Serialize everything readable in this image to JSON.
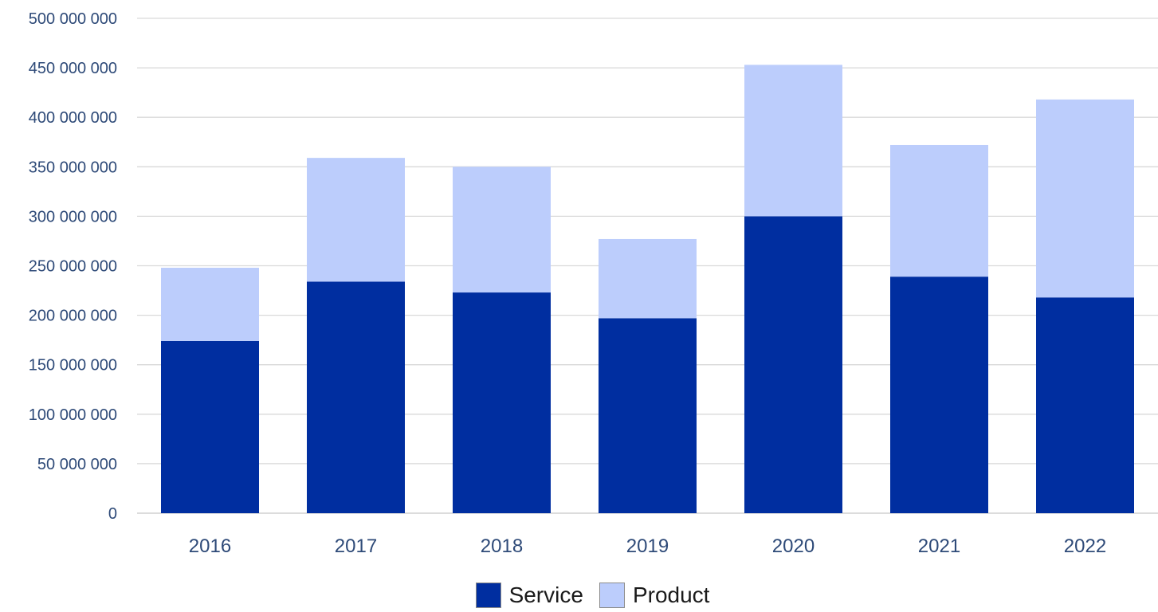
{
  "chart_data": {
    "type": "bar",
    "stacked": true,
    "categories": [
      "2016",
      "2017",
      "2018",
      "2019",
      "2020",
      "2021",
      "2022"
    ],
    "series": [
      {
        "name": "Service",
        "color": "#002ea0",
        "values": [
          174000000,
          234000000,
          223000000,
          197000000,
          300000000,
          239000000,
          218000000
        ]
      },
      {
        "name": "Product",
        "color": "#bccdfc",
        "values": [
          74000000,
          125000000,
          127000000,
          80000000,
          153000000,
          133000000,
          200000000
        ]
      }
    ],
    "ylim": [
      0,
      500000000
    ],
    "yticks": [
      {
        "value": 0,
        "label": "0"
      },
      {
        "value": 50000000,
        "label": "50 000 000"
      },
      {
        "value": 100000000,
        "label": "100 000 000"
      },
      {
        "value": 150000000,
        "label": "150 000 000"
      },
      {
        "value": 200000000,
        "label": "200 000 000"
      },
      {
        "value": 250000000,
        "label": "250 000 000"
      },
      {
        "value": 300000000,
        "label": "300 000 000"
      },
      {
        "value": 350000000,
        "label": "350 000 000"
      },
      {
        "value": 400000000,
        "label": "400 000 000"
      },
      {
        "value": 450000000,
        "label": "450 000 000"
      },
      {
        "value": 500000000,
        "label": "500 000 000"
      }
    ],
    "title": "",
    "xlabel": "",
    "ylabel": "",
    "grid": true,
    "legend_position": "bottom-center"
  }
}
